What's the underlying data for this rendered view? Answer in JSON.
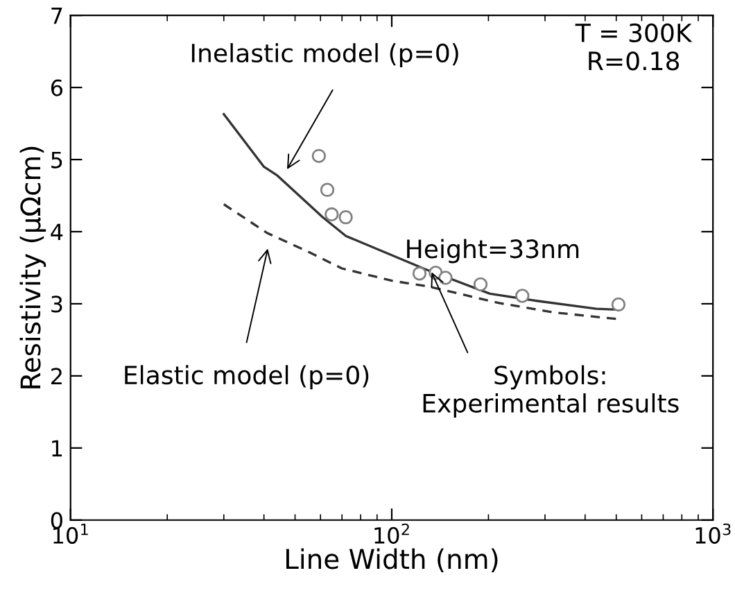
{
  "chart_data": {
    "type": "line",
    "xlabel": "Line Width (nm)",
    "ylabel": "Resistivity (μΩcm)",
    "log": "x",
    "xlim": [
      10,
      1000
    ],
    "ylim": [
      0,
      7
    ],
    "xticks": [
      {
        "value": 10,
        "label": "10$^{1}$"
      },
      {
        "value": 100,
        "label": "10$^{2}$"
      },
      {
        "value": 1000,
        "label": "10$^{3}$"
      }
    ],
    "yticks": [
      0,
      1,
      2,
      3,
      4,
      5,
      6,
      7
    ],
    "grid": false,
    "legend": false,
    "series": [
      {
        "color": "#333333",
        "line_style": "solid",
        "marker": "none",
        "x": [
          30,
          40,
          44,
          61,
          72,
          127,
          202,
          283,
          433,
          500
        ],
        "values": [
          5.63,
          4.9,
          4.78,
          4.2,
          3.94,
          3.48,
          3.14,
          3.04,
          2.93,
          2.92
        ]
      },
      {
        "color": "#333333",
        "line_style": "dashed",
        "marker": "none",
        "x": [
          30,
          41,
          55,
          70,
          100,
          130,
          216,
          320,
          500
        ],
        "values": [
          4.38,
          3.98,
          3.72,
          3.49,
          3.32,
          3.24,
          3.01,
          2.88,
          2.79
        ]
      },
      {
        "type": "scatter",
        "color": "#808080",
        "marker": "circle",
        "x": [
          59.3,
          63,
          65,
          71.9,
          122,
          137,
          147,
          189,
          255,
          508
        ],
        "values": [
          5.05,
          4.58,
          4.24,
          4.2,
          3.42,
          3.43,
          3.36,
          3.27,
          3.11,
          2.99
        ]
      }
    ],
    "annotations": [
      "Inelastic model (p=0)",
      "Elastic model (p=0)",
      {
        "text": "Symbols:\nExperimental results",
        "x": 133,
        "y": 3.44
      },
      "Height=33nm",
      "T = 300K\nR=0.18"
    ]
  }
}
